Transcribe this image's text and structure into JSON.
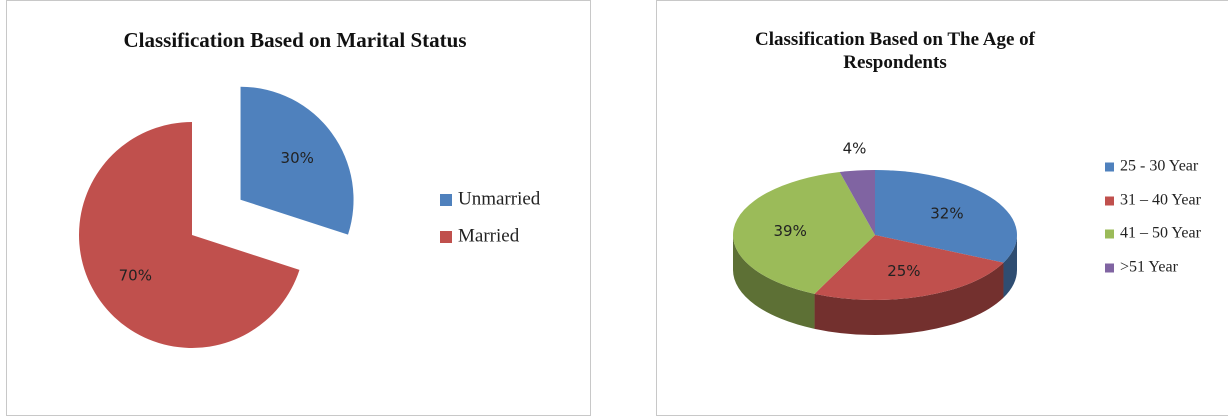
{
  "chart_data": [
    {
      "type": "pie",
      "title": "Classification Based on Marital Status",
      "categories": [
        "Unmarried",
        "Married"
      ],
      "values": [
        30,
        70
      ],
      "value_labels": [
        "30%",
        "70%"
      ],
      "colors": [
        "#4f81bd",
        "#c0504d"
      ],
      "explode": [
        true,
        false
      ],
      "legend": "right"
    },
    {
      "type": "pie3d",
      "title": "Classification Based on The Age of Respondents",
      "categories": [
        "25 - 30 Year",
        "31 – 40 Year",
        "41 – 50 Year",
        ">51 Year"
      ],
      "values": [
        32,
        25,
        39,
        4
      ],
      "value_labels": [
        "32%",
        "25%",
        "39%",
        "4%"
      ],
      "colors": [
        "#4f81bd",
        "#c0504d",
        "#9bbb59",
        "#8064a2"
      ],
      "legend": "right"
    }
  ]
}
